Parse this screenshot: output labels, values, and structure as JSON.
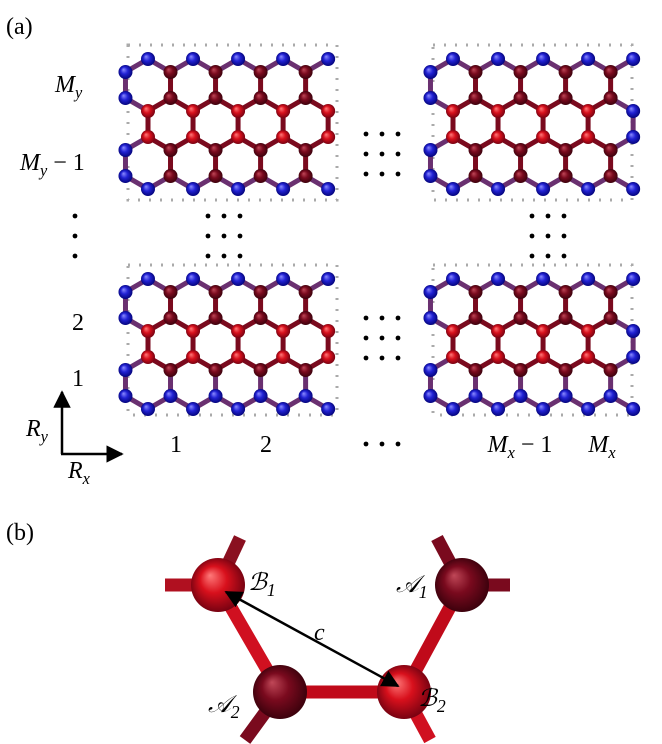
{
  "panel_a": {
    "label": "(a)",
    "row_labels": [
      {
        "base": "M",
        "sub": "y"
      },
      {
        "base": "M",
        "sub": "y",
        "suffix": "− 1"
      },
      {
        "text": "2"
      },
      {
        "text": "1"
      }
    ],
    "column_labels": [
      {
        "text": "1"
      },
      {
        "text": "2"
      },
      {
        "base": "M",
        "sub": "x",
        "suffix": "− 1"
      },
      {
        "base": "M",
        "sub": "x"
      }
    ],
    "axes": {
      "y": {
        "base": "R",
        "sub": "y"
      },
      "x": {
        "base": "R",
        "sub": "x"
      }
    }
  },
  "panel_b": {
    "label": "(b)",
    "sites": [
      {
        "base": "ℬ",
        "sub": "1"
      },
      {
        "base": "𝒜",
        "sub": "1"
      },
      {
        "base": "𝒜",
        "sub": "2"
      },
      {
        "base": "ℬ",
        "sub": "2"
      }
    ],
    "distance_label": "c"
  }
}
